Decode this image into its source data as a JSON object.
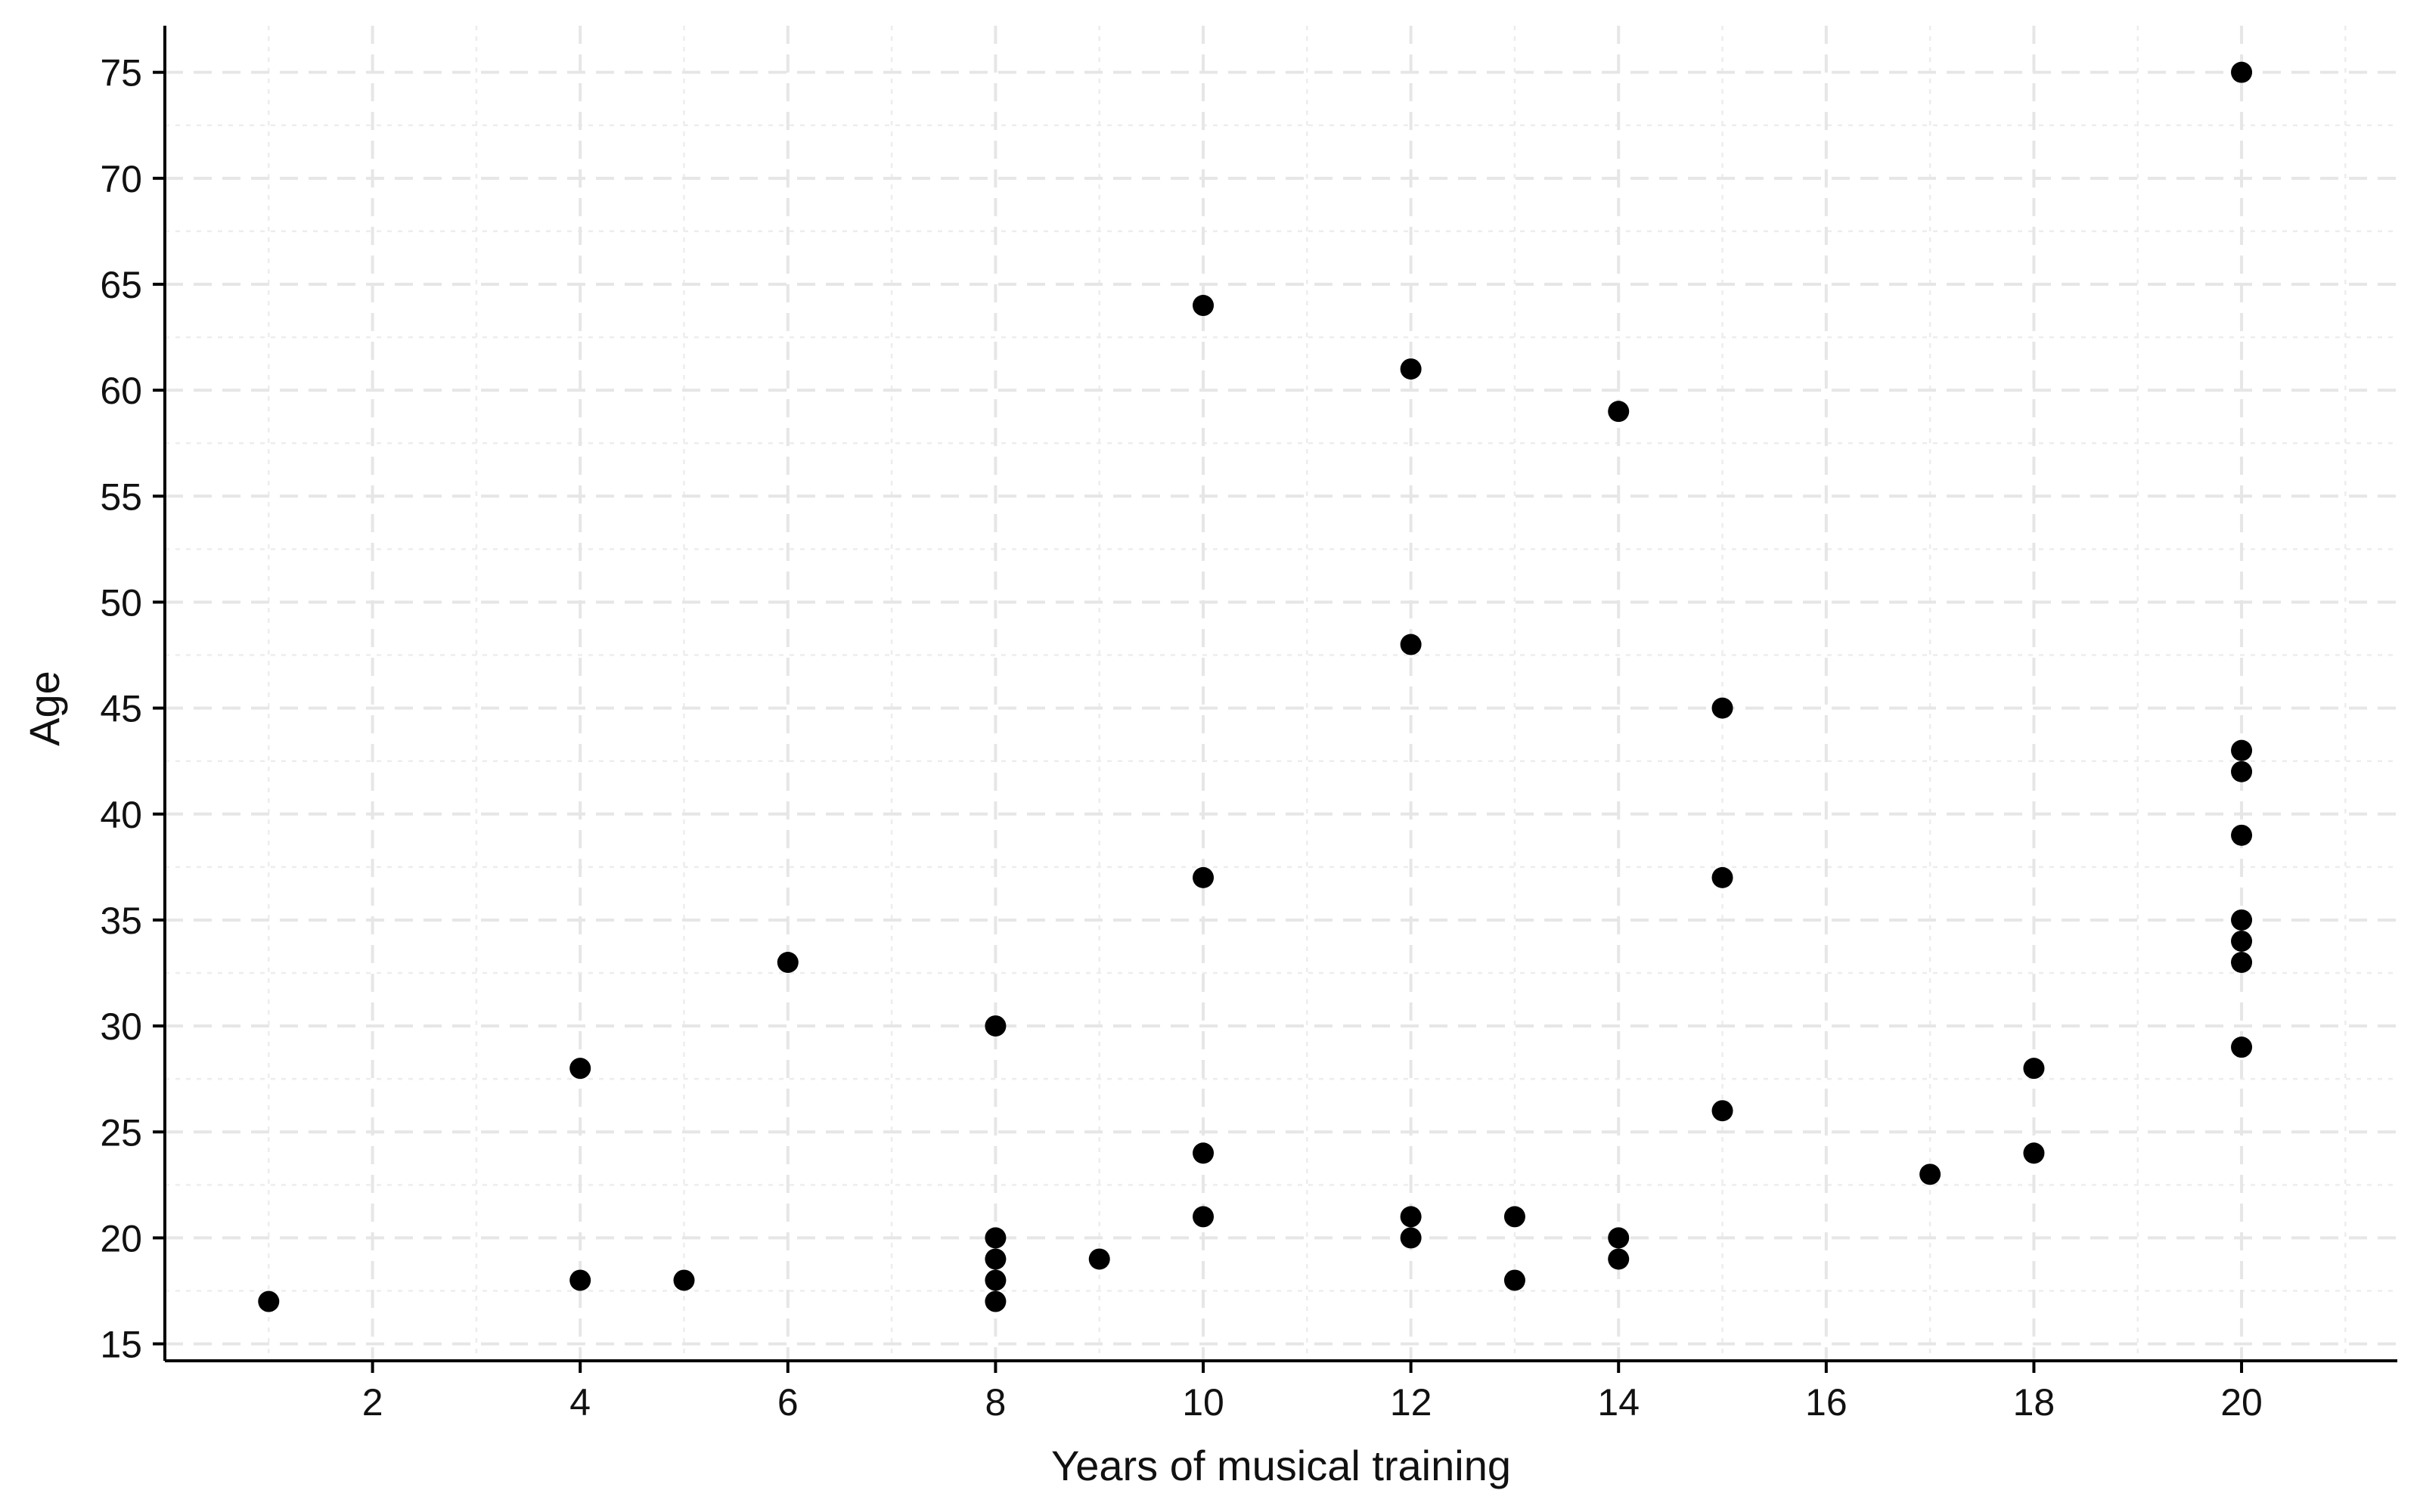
{
  "chart_data": {
    "type": "scatter",
    "title": "",
    "xlabel": "Years of musical training",
    "ylabel": "Age",
    "xlim": [
      0,
      21.5
    ],
    "ylim": [
      14.2,
      77.2
    ],
    "x_ticks": [
      2,
      4,
      6,
      8,
      10,
      12,
      14,
      16,
      18,
      20
    ],
    "y_ticks": [
      15,
      20,
      25,
      30,
      35,
      40,
      45,
      50,
      55,
      60,
      65,
      70,
      75
    ],
    "grid": "major dashed, minor dotted",
    "legend": "none",
    "point_color": "#000000",
    "points": [
      {
        "x": 1,
        "y": 17
      },
      {
        "x": 4,
        "y": 28
      },
      {
        "x": 4,
        "y": 18
      },
      {
        "x": 5,
        "y": 18
      },
      {
        "x": 6,
        "y": 33
      },
      {
        "x": 8,
        "y": 30
      },
      {
        "x": 8,
        "y": 20
      },
      {
        "x": 8,
        "y": 19
      },
      {
        "x": 8,
        "y": 18
      },
      {
        "x": 8,
        "y": 17
      },
      {
        "x": 9,
        "y": 19
      },
      {
        "x": 10,
        "y": 64
      },
      {
        "x": 10,
        "y": 37
      },
      {
        "x": 10,
        "y": 24
      },
      {
        "x": 10,
        "y": 21
      },
      {
        "x": 12,
        "y": 61
      },
      {
        "x": 12,
        "y": 48
      },
      {
        "x": 12,
        "y": 21
      },
      {
        "x": 12,
        "y": 20
      },
      {
        "x": 13,
        "y": 21
      },
      {
        "x": 13,
        "y": 18
      },
      {
        "x": 14,
        "y": 59
      },
      {
        "x": 14,
        "y": 20
      },
      {
        "x": 14,
        "y": 19
      },
      {
        "x": 15,
        "y": 45
      },
      {
        "x": 15,
        "y": 37
      },
      {
        "x": 15,
        "y": 26
      },
      {
        "x": 17,
        "y": 23
      },
      {
        "x": 18,
        "y": 28
      },
      {
        "x": 18,
        "y": 24
      },
      {
        "x": 20,
        "y": 75
      },
      {
        "x": 20,
        "y": 43
      },
      {
        "x": 20,
        "y": 42
      },
      {
        "x": 20,
        "y": 39
      },
      {
        "x": 20,
        "y": 35
      },
      {
        "x": 20,
        "y": 34
      },
      {
        "x": 20,
        "y": 33
      },
      {
        "x": 20,
        "y": 29
      }
    ]
  }
}
